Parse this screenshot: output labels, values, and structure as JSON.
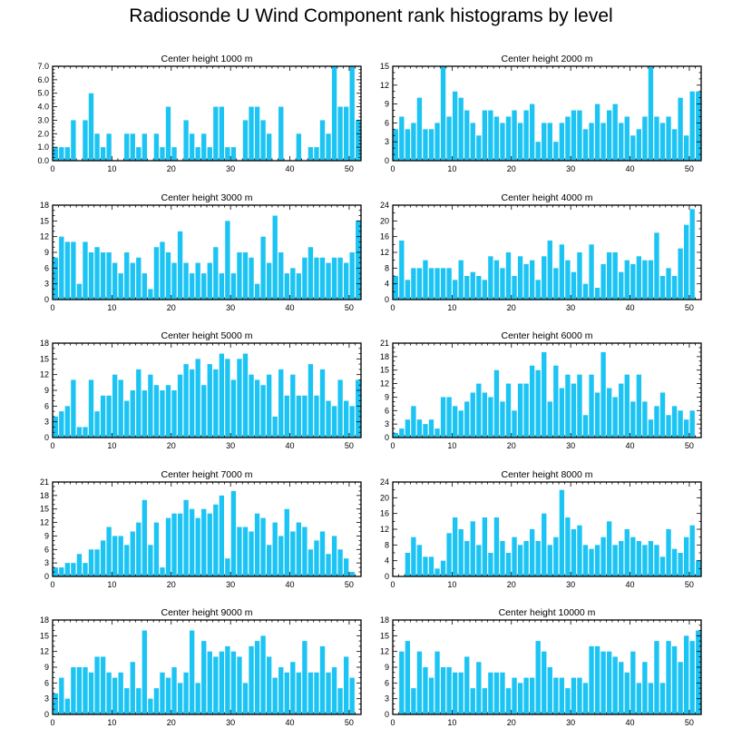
{
  "title": "Radiosonde U Wind Component rank histograms by level",
  "colors": {
    "bar": "#1cc4f4",
    "frame": "#000000"
  },
  "chart_data": [
    {
      "type": "bar",
      "title": "Center height 1000 m",
      "xlim": [
        0,
        52
      ],
      "ylim": [
        0,
        7
      ],
      "xticks": [
        0,
        10,
        20,
        30,
        40,
        50
      ],
      "yticks": [
        0,
        1,
        2,
        3,
        4,
        5,
        6,
        7
      ],
      "ytick_labels": [
        "0.0",
        "1.0",
        "2.0",
        "3.0",
        "4.0",
        "5.0",
        "6.0",
        "7.0"
      ],
      "values": [
        1,
        1,
        1,
        3,
        0,
        3,
        5,
        2,
        1,
        2,
        0,
        0,
        2,
        2,
        1,
        2,
        0,
        2,
        1,
        4,
        1,
        0,
        3,
        2,
        1,
        2,
        1,
        4,
        4,
        1,
        1,
        0,
        3,
        4,
        4,
        3,
        2,
        0,
        4,
        0,
        0,
        2,
        0,
        1,
        1,
        3,
        2,
        7,
        4,
        4,
        7,
        3
      ]
    },
    {
      "type": "bar",
      "title": "Center height 2000 m",
      "xlim": [
        0,
        52
      ],
      "ylim": [
        0,
        15
      ],
      "xticks": [
        0,
        10,
        20,
        30,
        40,
        50
      ],
      "yticks": [
        0,
        3,
        6,
        9,
        12,
        15
      ],
      "ytick_labels": [
        "0",
        "3",
        "6",
        "9",
        "12",
        "15"
      ],
      "values": [
        5,
        7,
        5,
        6,
        10,
        5,
        5,
        6,
        15,
        7,
        11,
        10,
        8,
        6,
        4,
        8,
        8,
        7,
        6,
        7,
        8,
        6,
        8,
        9,
        3,
        6,
        6,
        3,
        6,
        7,
        8,
        8,
        5,
        6,
        9,
        6,
        8,
        9,
        6,
        7,
        4,
        5,
        7,
        15,
        7,
        6,
        7,
        5,
        10,
        4,
        11,
        11
      ]
    },
    {
      "type": "bar",
      "title": "Center height 3000 m",
      "xlim": [
        0,
        52
      ],
      "ylim": [
        0,
        18
      ],
      "xticks": [
        0,
        10,
        20,
        30,
        40,
        50
      ],
      "yticks": [
        0,
        3,
        6,
        9,
        12,
        15,
        18
      ],
      "ytick_labels": [
        "0",
        "3",
        "6",
        "9",
        "12",
        "15",
        "18"
      ],
      "values": [
        8,
        12,
        11,
        11,
        3,
        11,
        9,
        10,
        9,
        9,
        7,
        5,
        9,
        7,
        8,
        5,
        2,
        10,
        11,
        9,
        7,
        13,
        7,
        5,
        7,
        5,
        7,
        10,
        5,
        15,
        5,
        9,
        9,
        8,
        3,
        12,
        7,
        16,
        9,
        5,
        6,
        5,
        8,
        10,
        8,
        8,
        7,
        8,
        8,
        7,
        9,
        15
      ]
    },
    {
      "type": "bar",
      "title": "Center height 4000 m",
      "xlim": [
        0,
        52
      ],
      "ylim": [
        0,
        24
      ],
      "xticks": [
        0,
        10,
        20,
        30,
        40,
        50
      ],
      "yticks": [
        0,
        4,
        8,
        12,
        16,
        20,
        24
      ],
      "ytick_labels": [
        "0",
        "4",
        "8",
        "12",
        "16",
        "20",
        "24"
      ],
      "values": [
        6,
        15,
        5,
        8,
        8,
        10,
        8,
        8,
        8,
        8,
        5,
        10,
        6,
        7,
        6,
        5,
        11,
        10,
        8,
        12,
        6,
        11,
        9,
        10,
        5,
        11,
        15,
        8,
        14,
        10,
        7,
        12,
        4,
        14,
        3,
        9,
        12,
        12,
        7,
        10,
        9,
        11,
        10,
        10,
        17,
        6,
        8,
        6,
        13,
        19,
        23,
        0
      ]
    },
    {
      "type": "bar",
      "title": "Center height 5000 m",
      "xlim": [
        0,
        52
      ],
      "ylim": [
        0,
        18
      ],
      "xticks": [
        0,
        10,
        20,
        30,
        40,
        50
      ],
      "yticks": [
        0,
        3,
        6,
        9,
        12,
        15,
        18
      ],
      "ytick_labels": [
        "0",
        "3",
        "6",
        "9",
        "12",
        "15",
        "18"
      ],
      "values": [
        4,
        5,
        6,
        11,
        2,
        2,
        11,
        5,
        8,
        8,
        12,
        11,
        7,
        9,
        13,
        9,
        12,
        10,
        9,
        10,
        9,
        12,
        14,
        13,
        15,
        10,
        14,
        13,
        16,
        15,
        11,
        15,
        16,
        12,
        11,
        10,
        12,
        4,
        13,
        8,
        12,
        8,
        8,
        14,
        8,
        13,
        7,
        6,
        11,
        7,
        6,
        11
      ]
    },
    {
      "type": "bar",
      "title": "Center height 6000 m",
      "xlim": [
        0,
        52
      ],
      "ylim": [
        0,
        21
      ],
      "xticks": [
        0,
        10,
        20,
        30,
        40,
        50
      ],
      "yticks": [
        0,
        3,
        6,
        9,
        12,
        15,
        18,
        21
      ],
      "ytick_labels": [
        "0",
        "3",
        "6",
        "9",
        "12",
        "15",
        "18",
        "21"
      ],
      "values": [
        1,
        2,
        4,
        7,
        4,
        3,
        4,
        2,
        9,
        9,
        7,
        6,
        8,
        10,
        12,
        10,
        9,
        15,
        8,
        12,
        6,
        12,
        12,
        16,
        15,
        19,
        8,
        16,
        11,
        14,
        12,
        14,
        5,
        14,
        10,
        19,
        11,
        9,
        12,
        14,
        8,
        14,
        8,
        4,
        7,
        10,
        5,
        7,
        6,
        4,
        6,
        0
      ]
    },
    {
      "type": "bar",
      "title": "Center height 7000 m",
      "xlim": [
        0,
        52
      ],
      "ylim": [
        0,
        21
      ],
      "xticks": [
        0,
        10,
        20,
        30,
        40,
        50
      ],
      "yticks": [
        0,
        3,
        6,
        9,
        12,
        15,
        18,
        21
      ],
      "ytick_labels": [
        "0",
        "3",
        "6",
        "9",
        "12",
        "15",
        "18",
        "21"
      ],
      "values": [
        2,
        2,
        3,
        3,
        5,
        3,
        6,
        6,
        8,
        11,
        9,
        9,
        7,
        10,
        12,
        17,
        7,
        12,
        2,
        13,
        14,
        14,
        17,
        15,
        13,
        15,
        14,
        16,
        18,
        4,
        19,
        11,
        11,
        10,
        14,
        13,
        7,
        12,
        9,
        15,
        10,
        12,
        11,
        6,
        8,
        10,
        5,
        9,
        6,
        4,
        1,
        0
      ]
    },
    {
      "type": "bar",
      "title": "Center height 8000 m",
      "xlim": [
        0,
        52
      ],
      "ylim": [
        0,
        24
      ],
      "xticks": [
        0,
        10,
        20,
        30,
        40,
        50
      ],
      "yticks": [
        0,
        4,
        8,
        12,
        16,
        20,
        24
      ],
      "ytick_labels": [
        "0",
        "4",
        "8",
        "12",
        "16",
        "20",
        "24"
      ],
      "values": [
        0,
        0,
        6,
        10,
        8,
        5,
        5,
        2,
        4,
        11,
        15,
        12,
        9,
        14,
        8,
        15,
        6,
        15,
        9,
        6,
        10,
        8,
        9,
        12,
        9,
        16,
        8,
        10,
        22,
        15,
        12,
        13,
        8,
        7,
        8,
        10,
        14,
        8,
        9,
        12,
        10,
        9,
        8,
        9,
        8,
        5,
        12,
        7,
        6,
        10,
        13,
        4
      ]
    },
    {
      "type": "bar",
      "title": "Center height 9000 m",
      "xlim": [
        0,
        52
      ],
      "ylim": [
        0,
        18
      ],
      "xticks": [
        0,
        10,
        20,
        30,
        40,
        50
      ],
      "yticks": [
        0,
        3,
        6,
        9,
        12,
        15,
        18
      ],
      "ytick_labels": [
        "0",
        "3",
        "6",
        "9",
        "12",
        "15",
        "18"
      ],
      "values": [
        4,
        7,
        3,
        9,
        9,
        9,
        8,
        11,
        11,
        8,
        7,
        8,
        5,
        10,
        5,
        16,
        3,
        5,
        8,
        7,
        9,
        6,
        8,
        16,
        6,
        14,
        12,
        11,
        12,
        13,
        12,
        11,
        6,
        13,
        14,
        15,
        11,
        7,
        9,
        8,
        10,
        8,
        14,
        8,
        8,
        13,
        8,
        9,
        5,
        11,
        7,
        0
      ]
    },
    {
      "type": "bar",
      "title": "Center height 10000 m",
      "xlim": [
        0,
        52
      ],
      "ylim": [
        0,
        18
      ],
      "xticks": [
        0,
        10,
        20,
        30,
        40,
        50
      ],
      "yticks": [
        0,
        3,
        6,
        9,
        12,
        15,
        18
      ],
      "ytick_labels": [
        "0",
        "3",
        "6",
        "9",
        "12",
        "15",
        "18"
      ],
      "values": [
        0,
        12,
        14,
        5,
        12,
        9,
        7,
        12,
        9,
        9,
        8,
        8,
        11,
        5,
        10,
        5,
        8,
        8,
        8,
        5,
        7,
        6,
        7,
        7,
        14,
        12,
        9,
        7,
        7,
        5,
        7,
        7,
        6,
        13,
        13,
        12,
        12,
        11,
        10,
        8,
        12,
        6,
        10,
        6,
        14,
        6,
        14,
        13,
        10,
        15,
        14,
        16
      ]
    }
  ]
}
